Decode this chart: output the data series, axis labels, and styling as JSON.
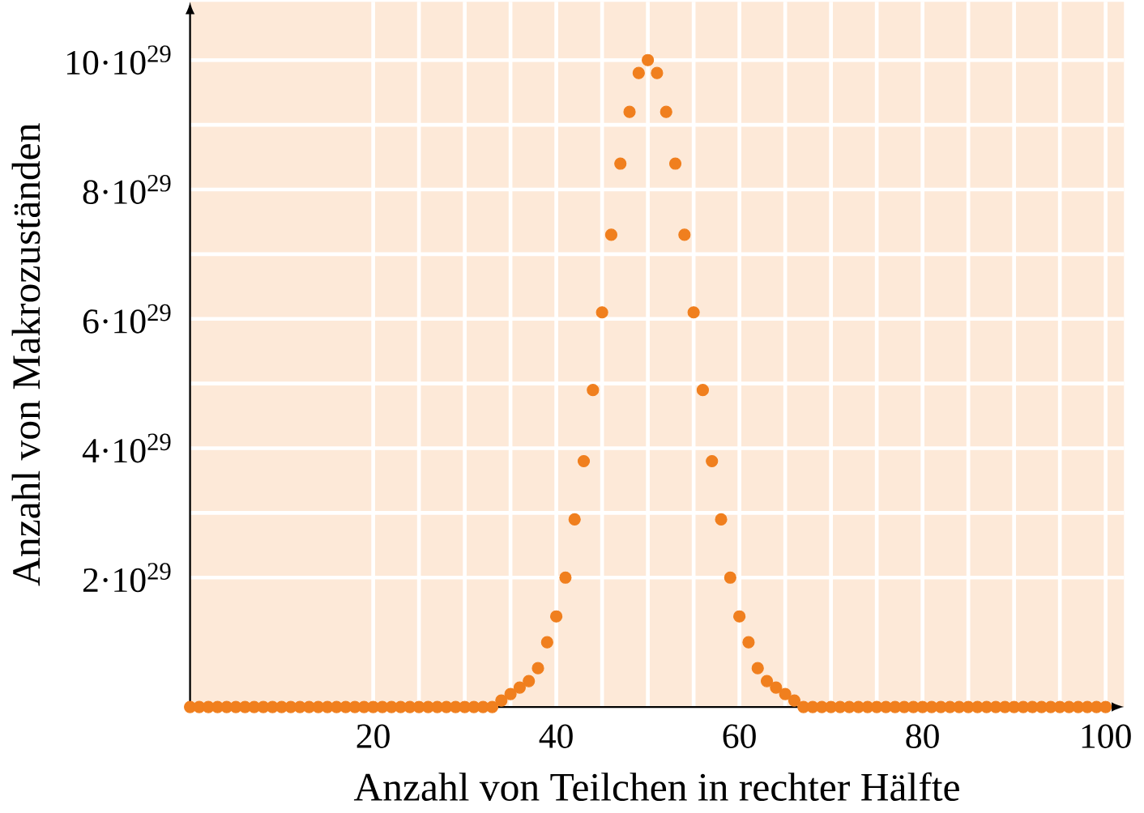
{
  "chart_data": {
    "type": "scatter",
    "xlabel": "Anzahl von Teilchen in rechter Hälfte",
    "ylabel": "Anzahl von Makrozuständen",
    "x": [
      0,
      1,
      2,
      3,
      4,
      5,
      6,
      7,
      8,
      9,
      10,
      11,
      12,
      13,
      14,
      15,
      16,
      17,
      18,
      19,
      20,
      21,
      22,
      23,
      24,
      25,
      26,
      27,
      28,
      29,
      30,
      31,
      32,
      33,
      34,
      35,
      36,
      37,
      38,
      39,
      40,
      41,
      42,
      43,
      44,
      45,
      46,
      47,
      48,
      49,
      50,
      51,
      52,
      53,
      54,
      55,
      56,
      57,
      58,
      59,
      60,
      61,
      62,
      63,
      64,
      65,
      66,
      67,
      68,
      69,
      70,
      71,
      72,
      73,
      74,
      75,
      76,
      77,
      78,
      79,
      80,
      81,
      82,
      83,
      84,
      85,
      86,
      87,
      88,
      89,
      90,
      91,
      92,
      93,
      94,
      95,
      96,
      97,
      98,
      99,
      100
    ],
    "series": [
      {
        "color": "#f07f1e",
        "values": [
          0,
          0,
          0,
          0,
          0,
          0,
          0,
          0,
          0,
          0,
          0,
          0,
          0,
          0,
          0,
          0,
          0,
          0,
          0,
          0,
          0,
          0,
          0,
          0,
          0,
          0,
          0,
          0,
          0,
          0,
          0,
          0,
          0,
          0,
          1e+28,
          2e+28,
          3e+28,
          4e+28,
          6e+28,
          1e+29,
          1.4e+29,
          2e+29,
          2.9e+29,
          3.8e+29,
          4.9e+29,
          6.1e+29,
          7.3e+29,
          8.4e+29,
          9.2e+29,
          9.8e+29,
          1e+30,
          9.8e+29,
          9.2e+29,
          8.4e+29,
          7.3e+29,
          6.1e+29,
          4.9e+29,
          3.8e+29,
          2.9e+29,
          2e+29,
          1.4e+29,
          1e+29,
          6e+28,
          4e+28,
          3e+28,
          2e+28,
          1e+28,
          0,
          0,
          0,
          0,
          0,
          0,
          0,
          0,
          0,
          0,
          0,
          0,
          0,
          0,
          0,
          0,
          0,
          0,
          0,
          0,
          0,
          0,
          0,
          0,
          0,
          0,
          0,
          0,
          0,
          0,
          0,
          0,
          0,
          0
        ]
      }
    ],
    "xlim": [
      0,
      102
    ],
    "ylim": [
      0,
      1.09e+30
    ],
    "xticks": [
      20,
      40,
      60,
      80,
      100
    ],
    "yticks": [
      {
        "value": 2e+29,
        "label": "2·10$^{29}$"
      },
      {
        "value": 4e+29,
        "label": "4·10$^{29}$"
      },
      {
        "value": 6e+29,
        "label": "6·10$^{29}$"
      },
      {
        "value": 8e+29,
        "label": "8·10$^{29}$"
      },
      {
        "value": 1e+30,
        "label": "10·10$^{29}$"
      }
    ],
    "grid": true
  }
}
